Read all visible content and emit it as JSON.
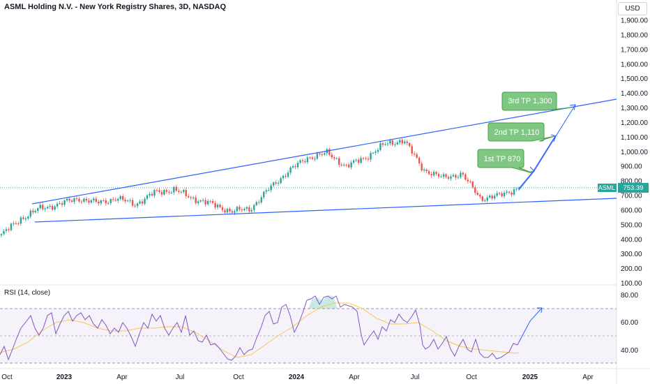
{
  "header": {
    "title": "ASML Holding N.V. - New York Registry Shares, 3D, NASDAQ",
    "currency": "USD"
  },
  "price_axis": {
    "ticks": [
      "1,900.00",
      "1,800.00",
      "1,700.00",
      "1,600.00",
      "1,500.00",
      "1,400.00",
      "1,300.00",
      "1,200.00",
      "1,100.00",
      "1,000.00",
      "900.00",
      "800.00",
      "700.00",
      "600.00",
      "500.00",
      "400.00",
      "300.00",
      "200.00",
      "100.00"
    ],
    "tick_values": [
      1900,
      1800,
      1700,
      1600,
      1500,
      1400,
      1300,
      1200,
      1100,
      1000,
      900,
      800,
      700,
      600,
      500,
      400,
      300,
      200,
      100
    ]
  },
  "last_price": {
    "symbol": "ASML",
    "value": "753.39",
    "numeric": 753.39
  },
  "targets": [
    {
      "label": "1st TP 870",
      "price": 870
    },
    {
      "label": "2nd TP 1,110",
      "price": 1110
    },
    {
      "label": "3rd TP 1,300",
      "price": 1300
    }
  ],
  "rsi": {
    "label": "RSI (14, close)",
    "ticks": [
      "80.00",
      "60.00",
      "40.00"
    ],
    "tick_values": [
      80,
      60,
      40
    ],
    "bands": [
      70,
      50,
      30
    ]
  },
  "time_axis": {
    "labels": [
      "Oct",
      "2023",
      "Apr",
      "Jul",
      "Oct",
      "2024",
      "Apr",
      "Jul",
      "Oct",
      "2025",
      "Apr"
    ]
  },
  "colors": {
    "up": "#26a69a",
    "down": "#ef5350",
    "trendline": "#2962ff",
    "rsi_line": "#7e57c2",
    "rsi_ma": "#f9c74f",
    "callout": "#66bb6a"
  },
  "chart_data": {
    "type": "candlestick",
    "series": [
      {
        "name": "ASML",
        "approx_close_path": [
          {
            "x": "2022-10",
            "y": 430
          },
          {
            "x": "2022-11",
            "y": 540
          },
          {
            "x": "2022-12",
            "y": 610
          },
          {
            "x": "2023-01",
            "y": 640
          },
          {
            "x": "2023-02",
            "y": 680
          },
          {
            "x": "2023-03",
            "y": 650
          },
          {
            "x": "2023-04",
            "y": 680
          },
          {
            "x": "2023-05",
            "y": 640
          },
          {
            "x": "2023-06",
            "y": 720
          },
          {
            "x": "2023-07",
            "y": 740
          },
          {
            "x": "2023-08",
            "y": 680
          },
          {
            "x": "2023-09",
            "y": 640
          },
          {
            "x": "2023-10",
            "y": 590
          },
          {
            "x": "2023-11",
            "y": 610
          },
          {
            "x": "2023-12",
            "y": 750
          },
          {
            "x": "2024-01",
            "y": 870
          },
          {
            "x": "2024-02",
            "y": 960
          },
          {
            "x": "2024-03",
            "y": 990
          },
          {
            "x": "2024-04",
            "y": 900
          },
          {
            "x": "2024-05",
            "y": 960
          },
          {
            "x": "2024-06",
            "y": 1050
          },
          {
            "x": "2024-07",
            "y": 1080
          },
          {
            "x": "2024-08",
            "y": 880
          },
          {
            "x": "2024-09",
            "y": 820
          },
          {
            "x": "2024-10",
            "y": 850
          },
          {
            "x": "2024-11",
            "y": 680
          },
          {
            "x": "2024-12",
            "y": 700
          },
          {
            "x": "2025-01",
            "y": 753
          }
        ]
      },
      {
        "name": "RSI (14, close)",
        "approx_path": [
          {
            "x": "2022-10",
            "y": 38
          },
          {
            "x": "2022-12",
            "y": 66
          },
          {
            "x": "2023-02",
            "y": 64
          },
          {
            "x": "2023-04",
            "y": 52
          },
          {
            "x": "2023-06",
            "y": 64
          },
          {
            "x": "2023-08",
            "y": 45
          },
          {
            "x": "2023-10",
            "y": 32
          },
          {
            "x": "2023-12",
            "y": 68
          },
          {
            "x": "2024-02",
            "y": 80
          },
          {
            "x": "2024-04",
            "y": 56
          },
          {
            "x": "2024-06",
            "y": 66
          },
          {
            "x": "2024-08",
            "y": 48
          },
          {
            "x": "2024-10",
            "y": 42
          },
          {
            "x": "2024-11",
            "y": 33
          },
          {
            "x": "2024-12",
            "y": 36
          },
          {
            "x": "2025-01",
            "y": 44
          }
        ]
      }
    ]
  }
}
